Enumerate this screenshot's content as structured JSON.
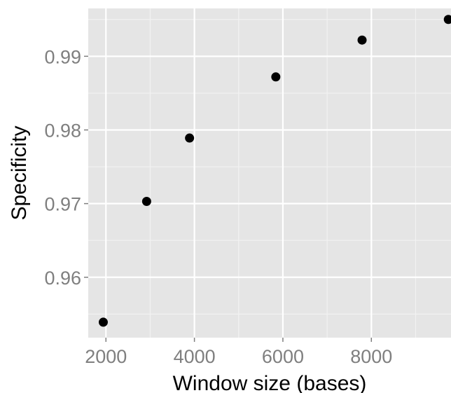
{
  "chart_data": {
    "type": "scatter",
    "title": "",
    "xlabel": "Window size (bases)",
    "ylabel": "Specificity",
    "xlim": [
      1600,
      9800
    ],
    "ylim": [
      0.9518,
      0.9965
    ],
    "x_ticks": [
      2000,
      4000,
      6000,
      8000
    ],
    "y_ticks": [
      0.96,
      0.97,
      0.98,
      0.99
    ],
    "x_tick_labels": [
      "2000",
      "4000",
      "6000",
      "8000"
    ],
    "y_tick_labels": [
      "0.96",
      "0.97",
      "0.98",
      "0.99"
    ],
    "grid": true,
    "legend": "none",
    "series": [
      {
        "x": [
          1940,
          2920,
          3890,
          5840,
          7790,
          9740
        ],
        "y": [
          0.9539,
          0.9703,
          0.9789,
          0.9872,
          0.9922,
          0.995
        ]
      }
    ],
    "colors": {
      "panel_background": "#e5e5e5",
      "grid_major": "#ffffff",
      "grid_minor": "#f2f2f2",
      "point": "#000000",
      "tick_text": "#7f7f7f",
      "title_text": "#000000"
    }
  }
}
